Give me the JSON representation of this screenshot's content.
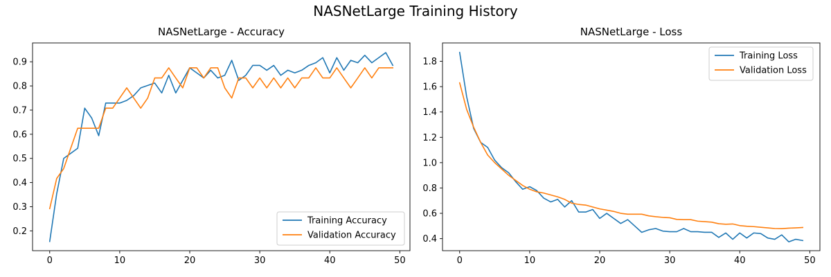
{
  "figure": {
    "title": "NASNetLarge Training History"
  },
  "colors": {
    "series1": "#1f77b4",
    "series2": "#ff7f0e"
  },
  "chart_data": [
    {
      "type": "line",
      "title": "NASNetLarge - Accuracy",
      "xlabel": "",
      "ylabel": "",
      "xlim": [
        -2.45,
        51.45
      ],
      "ylim": [
        0.118,
        0.978
      ],
      "xticks": [
        0,
        10,
        20,
        30,
        40,
        50
      ],
      "yticks": [
        0.2,
        0.3,
        0.4,
        0.5,
        0.6,
        0.7,
        0.8,
        0.9
      ],
      "legend_position": "lower right",
      "x": [
        0,
        1,
        2,
        3,
        4,
        5,
        6,
        7,
        8,
        9,
        10,
        11,
        12,
        13,
        14,
        15,
        16,
        17,
        18,
        19,
        20,
        21,
        22,
        23,
        24,
        25,
        26,
        27,
        28,
        29,
        30,
        31,
        32,
        33,
        34,
        35,
        36,
        37,
        38,
        39,
        40,
        41,
        42,
        43,
        44,
        45,
        46,
        47,
        48,
        49
      ],
      "series": [
        {
          "name": "Training Accuracy",
          "color": "#1f77b4",
          "values": [
            0.156,
            0.354,
            0.5,
            0.521,
            0.542,
            0.708,
            0.667,
            0.594,
            0.729,
            0.729,
            0.729,
            0.74,
            0.76,
            0.792,
            0.802,
            0.812,
            0.771,
            0.844,
            0.771,
            0.823,
            0.875,
            0.854,
            0.833,
            0.865,
            0.833,
            0.844,
            0.906,
            0.823,
            0.844,
            0.885,
            0.885,
            0.865,
            0.885,
            0.844,
            0.865,
            0.854,
            0.865,
            0.885,
            0.896,
            0.917,
            0.854,
            0.917,
            0.865,
            0.906,
            0.896,
            0.927,
            0.896,
            0.917,
            0.938,
            0.885
          ]
        },
        {
          "name": "Validation Accuracy",
          "color": "#ff7f0e",
          "values": [
            0.292,
            0.417,
            0.458,
            0.542,
            0.625,
            0.625,
            0.625,
            0.625,
            0.708,
            0.708,
            0.75,
            0.792,
            0.75,
            0.708,
            0.75,
            0.833,
            0.833,
            0.875,
            0.833,
            0.792,
            0.875,
            0.875,
            0.833,
            0.875,
            0.875,
            0.792,
            0.75,
            0.833,
            0.833,
            0.792,
            0.833,
            0.792,
            0.833,
            0.792,
            0.833,
            0.792,
            0.833,
            0.833,
            0.875,
            0.833,
            0.833,
            0.875,
            0.833,
            0.792,
            0.833,
            0.875,
            0.833,
            0.875,
            0.875,
            0.875
          ]
        }
      ]
    },
    {
      "type": "line",
      "title": "NASNetLarge - Loss",
      "xlabel": "",
      "ylabel": "",
      "xlim": [
        -2.45,
        51.45
      ],
      "ylim": [
        0.305,
        1.945
      ],
      "xticks": [
        0,
        10,
        20,
        30,
        40,
        50
      ],
      "yticks": [
        0.4,
        0.6,
        0.8,
        1.0,
        1.2,
        1.4,
        1.6,
        1.8
      ],
      "ytick_labels": [
        "0.4",
        "0.6",
        "0.8",
        "1.0",
        "1.2",
        "1.4",
        "1.6",
        "1.8"
      ],
      "legend_position": "upper right",
      "x": [
        0,
        1,
        2,
        3,
        4,
        5,
        6,
        7,
        8,
        9,
        10,
        11,
        12,
        13,
        14,
        15,
        16,
        17,
        18,
        19,
        20,
        21,
        22,
        23,
        24,
        25,
        26,
        27,
        28,
        29,
        30,
        31,
        32,
        33,
        34,
        35,
        36,
        37,
        38,
        39,
        40,
        41,
        42,
        43,
        44,
        45,
        46,
        47,
        48,
        49
      ],
      "series": [
        {
          "name": "Training Loss",
          "color": "#1f77b4",
          "values": [
            1.87,
            1.52,
            1.27,
            1.16,
            1.12,
            1.02,
            0.96,
            0.92,
            0.85,
            0.79,
            0.81,
            0.78,
            0.72,
            0.69,
            0.71,
            0.65,
            0.7,
            0.61,
            0.61,
            0.63,
            0.56,
            0.6,
            0.56,
            0.52,
            0.55,
            0.5,
            0.45,
            0.47,
            0.48,
            0.46,
            0.455,
            0.455,
            0.48,
            0.455,
            0.455,
            0.45,
            0.45,
            0.41,
            0.445,
            0.395,
            0.445,
            0.405,
            0.445,
            0.44,
            0.405,
            0.395,
            0.43,
            0.375,
            0.395,
            0.385
          ]
        },
        {
          "name": "Validation Loss",
          "color": "#ff7f0e",
          "values": [
            1.63,
            1.42,
            1.28,
            1.16,
            1.06,
            1.0,
            0.95,
            0.9,
            0.86,
            0.82,
            0.79,
            0.77,
            0.76,
            0.745,
            0.73,
            0.71,
            0.68,
            0.67,
            0.665,
            0.65,
            0.635,
            0.625,
            0.615,
            0.6,
            0.593,
            0.593,
            0.593,
            0.58,
            0.573,
            0.568,
            0.565,
            0.552,
            0.55,
            0.55,
            0.538,
            0.534,
            0.53,
            0.518,
            0.514,
            0.516,
            0.503,
            0.498,
            0.495,
            0.49,
            0.485,
            0.48,
            0.479,
            0.483,
            0.485,
            0.488
          ]
        }
      ]
    }
  ]
}
